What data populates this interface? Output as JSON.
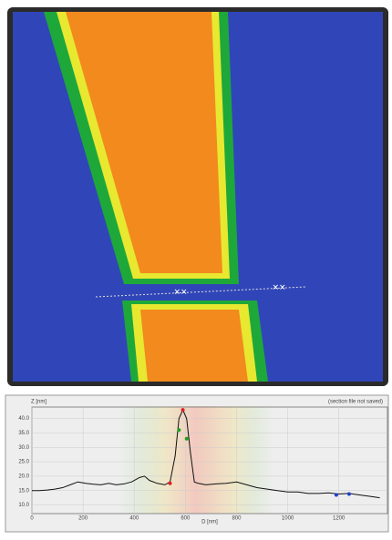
{
  "chart_data": {
    "type": "line",
    "y_label": "Z [nm]",
    "x_label": "D [nm]",
    "note": "(section file not saved)",
    "xlim": [
      0,
      1390
    ],
    "ylim": [
      7,
      44
    ],
    "xticks": [
      0,
      200,
      400,
      600,
      800,
      1000,
      1200
    ],
    "yticks": [
      {
        "value": 10,
        "label": "10.0"
      },
      {
        "value": 15,
        "label": "15.0"
      },
      {
        "value": 20,
        "label": "20.0"
      },
      {
        "value": 25,
        "label": "25.0"
      },
      {
        "value": 30,
        "label": "30.0"
      },
      {
        "value": 35,
        "label": "35.0"
      },
      {
        "value": 40,
        "label": "40.0"
      }
    ],
    "grid": true,
    "x": [
      0,
      30,
      60,
      90,
      120,
      150,
      180,
      210,
      240,
      270,
      300,
      330,
      360,
      390,
      420,
      440,
      460,
      490,
      520,
      540,
      560,
      575,
      590,
      605,
      620,
      635,
      650,
      680,
      720,
      760,
      800,
      840,
      880,
      920,
      960,
      1000,
      1040,
      1080,
      1120,
      1160,
      1200,
      1240,
      1280,
      1320,
      1360
    ],
    "series": [
      {
        "color": "#111111",
        "values": [
          15,
          15,
          15.2,
          15.5,
          16,
          17,
          18,
          17.5,
          17.2,
          17,
          17.5,
          17,
          17.3,
          18,
          19.5,
          20,
          18.5,
          17.5,
          17,
          18,
          27,
          40,
          43,
          40,
          28,
          18,
          17.5,
          17,
          17.3,
          17.5,
          18,
          17,
          16,
          15.5,
          15,
          14.5,
          14.5,
          14,
          14,
          14.2,
          13.8,
          14,
          13.5,
          13,
          12.5
        ]
      }
    ],
    "markers": {
      "x": [
        540,
        590,
        575,
        605,
        1190,
        1240
      ],
      "y": [
        17.5,
        43,
        36,
        33,
        13.5,
        13.8
      ],
      "colors": [
        "#e02020",
        "#e02020",
        "#20a020",
        "#20a020",
        "#2040d0",
        "#2040d0"
      ]
    }
  }
}
